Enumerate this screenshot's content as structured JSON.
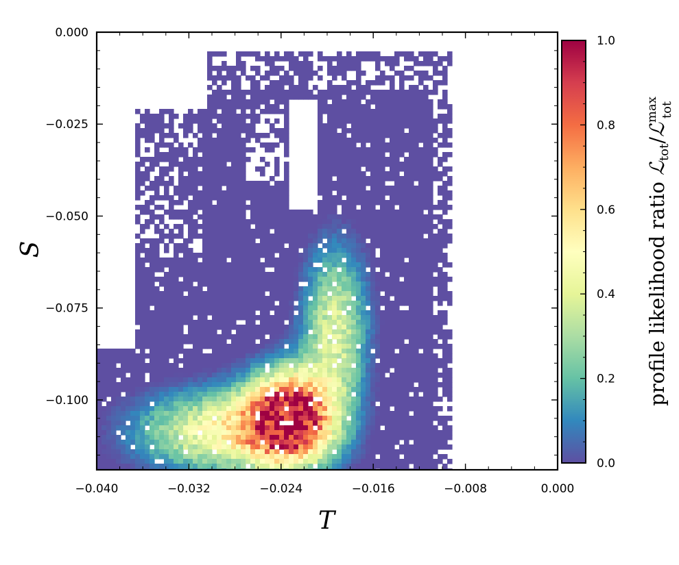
{
  "chart_data": {
    "type": "heatmap",
    "title": "",
    "xlabel": "T",
    "ylabel": "S",
    "xlim": [
      -0.04,
      0.0
    ],
    "ylim": [
      -0.119,
      0.0
    ],
    "x_ticks": [
      "−0.040",
      "−0.032",
      "−0.024",
      "−0.016",
      "−0.008",
      "0.000"
    ],
    "y_ticks": [
      "0.000",
      "−0.025",
      "−0.050",
      "−0.075",
      "−0.100"
    ],
    "x_tick_values": [
      -0.04,
      -0.032,
      -0.024,
      -0.016,
      -0.008,
      0.0
    ],
    "y_tick_values": [
      0.0,
      -0.025,
      -0.05,
      -0.075,
      -0.1
    ],
    "colorbar": {
      "label": "profile likelihood ratio ℒ_tot/ℒ_tot^max",
      "label_main": "profile likelihood ratio ",
      "label_math": "ℒ",
      "label_sub": "tot",
      "label_sup": "max",
      "range": [
        0.0,
        1.0
      ],
      "ticks": [
        "0.0",
        "0.2",
        "0.4",
        "0.6",
        "0.8",
        "1.0"
      ],
      "tick_values": [
        0.0,
        0.2,
        0.4,
        0.6,
        0.8,
        1.0
      ],
      "colormap": "Spectral_r",
      "colors": [
        "#5e4fa2",
        "#3288bd",
        "#66c2a5",
        "#abdda4",
        "#e6f598",
        "#ffffbf",
        "#fee08b",
        "#fdae61",
        "#f46d43",
        "#d53e4f",
        "#9e0142"
      ]
    },
    "best_fit": {
      "T": -0.0235,
      "S": -0.104,
      "value": 1.0
    },
    "regions": [
      {
        "name": "background",
        "T_range": [
          -0.04,
          -0.0095
        ],
        "S_range": [
          -0.119,
          -0.005
        ],
        "value": 0.0
      },
      {
        "name": "peak",
        "T_center": -0.0235,
        "S_center": -0.102,
        "value": 1.0
      }
    ],
    "grid": false,
    "legend": "none"
  }
}
